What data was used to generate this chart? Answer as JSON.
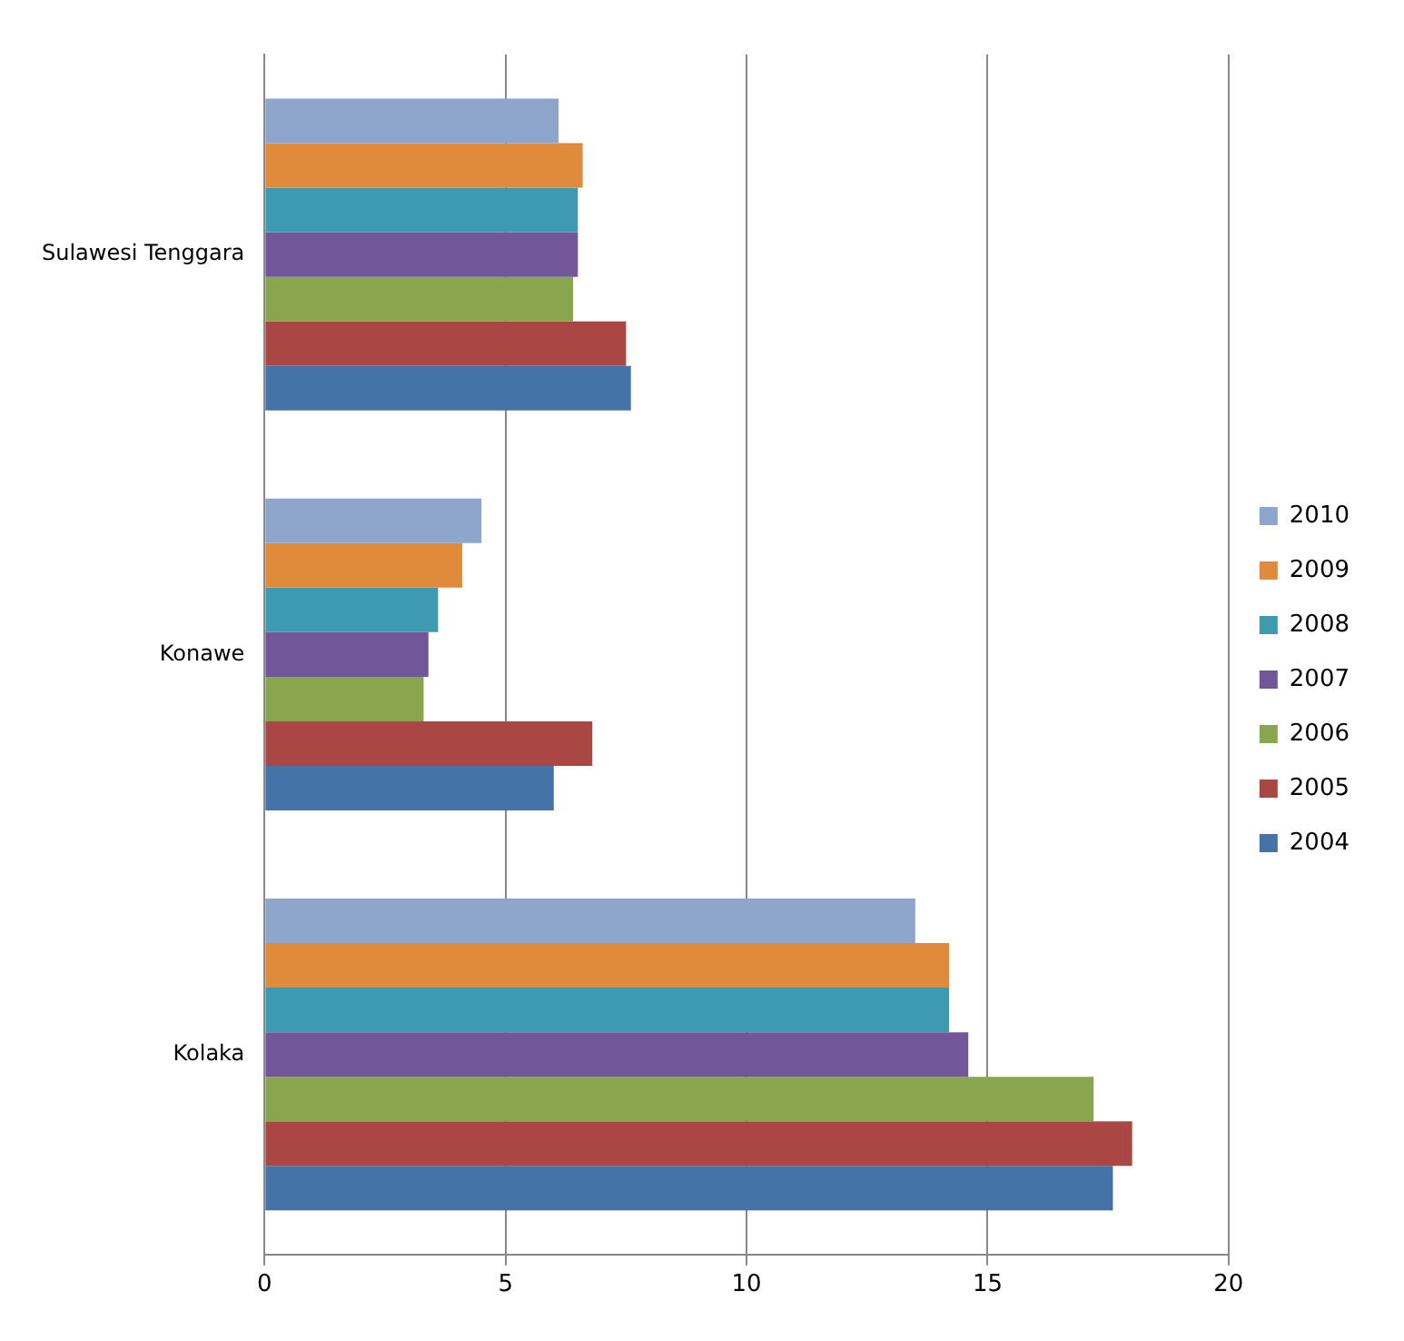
{
  "chart_data": {
    "type": "bar",
    "orientation": "horizontal",
    "categories": [
      "Sulawesi Tenggara",
      "Konawe",
      "Kolaka"
    ],
    "series": [
      {
        "name": "2010",
        "color": "#8ea5cc",
        "values": [
          6.1,
          4.5,
          13.5
        ]
      },
      {
        "name": "2009",
        "color": "#e08a3c",
        "values": [
          6.6,
          4.1,
          14.2
        ]
      },
      {
        "name": "2008",
        "color": "#3d9ab0",
        "values": [
          6.5,
          3.6,
          14.2
        ]
      },
      {
        "name": "2007",
        "color": "#72569a",
        "values": [
          6.5,
          3.4,
          14.6
        ]
      },
      {
        "name": "2006",
        "color": "#89a54e",
        "values": [
          6.4,
          3.3,
          17.2
        ]
      },
      {
        "name": "2005",
        "color": "#aa4643",
        "values": [
          7.5,
          6.8,
          18.0
        ]
      },
      {
        "name": "2004",
        "color": "#4572a7",
        "values": [
          7.6,
          6.0,
          17.6
        ]
      }
    ],
    "xlim": [
      0,
      20
    ],
    "xticks": [
      0,
      5,
      10,
      15,
      20
    ],
    "grid": "x",
    "legend": "right"
  }
}
